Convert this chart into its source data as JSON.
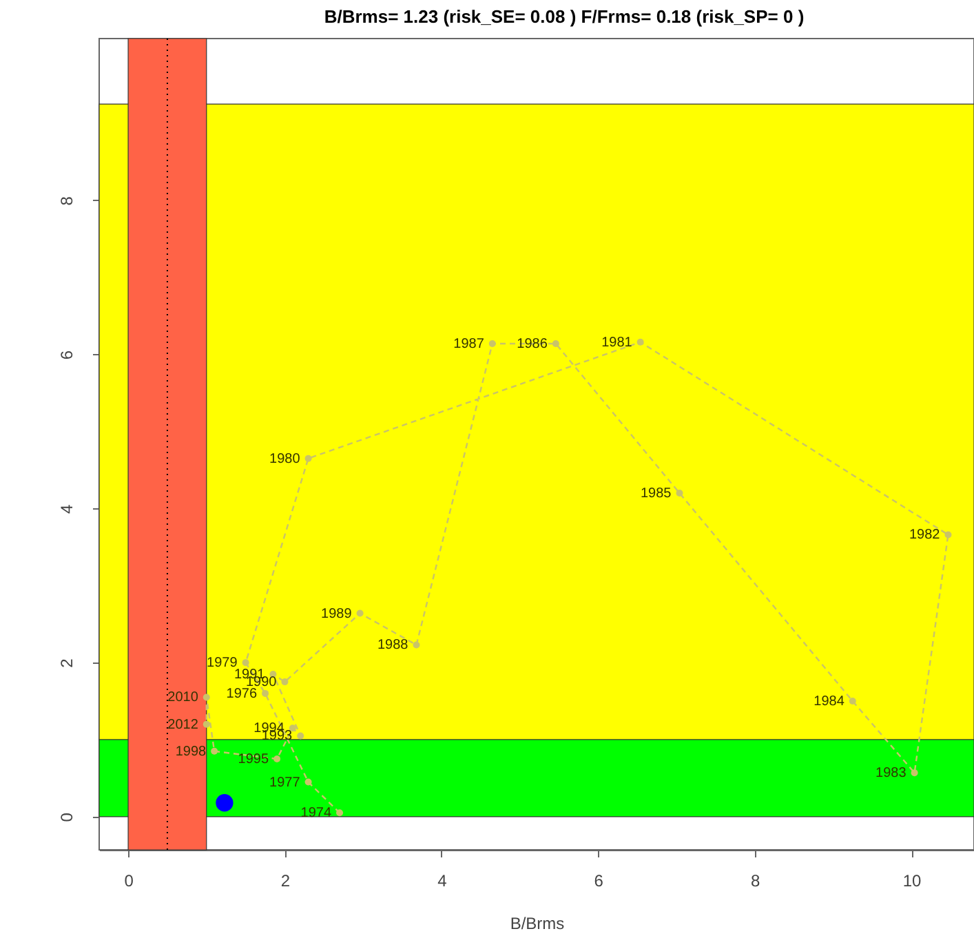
{
  "chart_data": {
    "type": "line",
    "title": "B/Brms= 1.23  (risk_SE= 0.08 )  F/Frms= 0.18  (risk_SP= 0 )",
    "xlabel": "B/Brms",
    "xlim": [
      -0.37,
      10.8
    ],
    "ylim": [
      -0.43,
      10.1
    ],
    "xticks": [
      0,
      2,
      4,
      6,
      8,
      10
    ],
    "yticks": [
      0,
      2,
      4,
      6,
      8
    ],
    "marker": "circle",
    "line_style": "dashed",
    "series": [
      {
        "color": "#c9c36a",
        "x": [
          2.7,
          2.3,
          1.75,
          1.5,
          2.3,
          6.54,
          10.47,
          10.04,
          9.25,
          7.04,
          5.46,
          4.65,
          3.68,
          2.96,
          2.0,
          1.85,
          2.2,
          2.1,
          1.9,
          1.1,
          1.0,
          1.0
        ],
        "values": [
          0.05,
          0.45,
          1.6,
          2.0,
          4.65,
          6.16,
          3.66,
          0.57,
          1.5,
          4.2,
          6.14,
          6.14,
          2.23,
          2.64,
          1.75,
          1.85,
          1.05,
          1.15,
          0.75,
          0.85,
          1.55,
          1.2
        ]
      },
      {
        "type": "scatter",
        "color": "#0000ff",
        "x": [
          1.23
        ],
        "values": [
          0.18
        ]
      }
    ],
    "bands": [
      {
        "axis": "y",
        "from": 1,
        "to": 9.25,
        "color": "#ffff00"
      },
      {
        "axis": "y",
        "from": 0,
        "to": 1,
        "color": "#00ff00"
      },
      {
        "axis": "x",
        "from": 0,
        "to": 1,
        "color": "#ff6347"
      }
    ],
    "ref_lines": [
      {
        "axis": "x",
        "value": 0.5,
        "color": "#000000",
        "line_style": "dotted"
      }
    ],
    "annotations": [
      {
        "text": "1974",
        "x": 2.7,
        "y": 0.05
      },
      {
        "text": "1977",
        "x": 2.3,
        "y": 0.45
      },
      {
        "text": "1976",
        "x": 1.75,
        "y": 1.6
      },
      {
        "text": "1979",
        "x": 1.5,
        "y": 2.0
      },
      {
        "text": "1980",
        "x": 2.3,
        "y": 4.65
      },
      {
        "text": "1981",
        "x": 6.54,
        "y": 6.16
      },
      {
        "text": "1982",
        "x": 10.47,
        "y": 3.66
      },
      {
        "text": "1983",
        "x": 10.04,
        "y": 0.57
      },
      {
        "text": "1984",
        "x": 9.25,
        "y": 1.5
      },
      {
        "text": "1985",
        "x": 7.04,
        "y": 4.2
      },
      {
        "text": "1986",
        "x": 5.46,
        "y": 6.14
      },
      {
        "text": "1987",
        "x": 4.65,
        "y": 6.14
      },
      {
        "text": "1988",
        "x": 3.68,
        "y": 2.23
      },
      {
        "text": "1989",
        "x": 2.96,
        "y": 2.64
      },
      {
        "text": "1990",
        "x": 2.0,
        "y": 1.75
      },
      {
        "text": "1991",
        "x": 1.85,
        "y": 1.85
      },
      {
        "text": "1993",
        "x": 2.2,
        "y": 1.05
      },
      {
        "text": "1994",
        "x": 2.1,
        "y": 1.15
      },
      {
        "text": "1995",
        "x": 1.9,
        "y": 0.75
      },
      {
        "text": "1998",
        "x": 1.1,
        "y": 0.85
      },
      {
        "text": "2010",
        "x": 1.0,
        "y": 1.55
      },
      {
        "text": "2012",
        "x": 1.0,
        "y": 1.2
      }
    ]
  }
}
